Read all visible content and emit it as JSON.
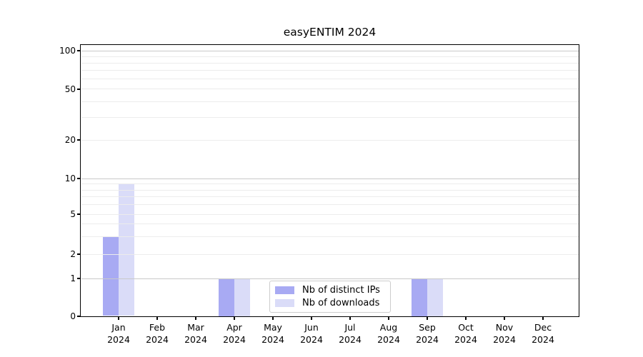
{
  "chart_data": {
    "type": "bar",
    "title": "easyENTIM 2024",
    "categories": [
      "Jan 2024",
      "Feb 2024",
      "Mar 2024",
      "Apr 2024",
      "May 2024",
      "Jun 2024",
      "Jul 2024",
      "Aug 2024",
      "Sep 2024",
      "Oct 2024",
      "Nov 2024",
      "Dec 2024"
    ],
    "series": [
      {
        "name": "Nb of distinct IPs",
        "color": "#a8aaf3",
        "values": [
          3,
          0,
          0,
          1,
          0,
          0,
          0,
          0,
          1,
          0,
          0,
          0
        ]
      },
      {
        "name": "Nb of downloads",
        "color": "#dadcf8",
        "values": [
          9,
          0,
          0,
          1,
          0,
          0,
          0,
          0,
          1,
          0,
          0,
          0
        ]
      }
    ],
    "xlabel": "",
    "ylabel": "",
    "yscale": "symlog",
    "ylim": [
      0,
      110
    ],
    "yticks": [
      0,
      1,
      2,
      5,
      10,
      20,
      50,
      100
    ],
    "major_gridlines": [
      1,
      10,
      100
    ],
    "minor_gridlines": [
      2,
      3,
      4,
      5,
      6,
      7,
      8,
      9,
      20,
      30,
      40,
      50,
      60,
      70,
      80,
      90
    ],
    "grid": "horizontal major and minor",
    "legend_position": "inside bottom-center"
  },
  "colors": {
    "axis": "#000000",
    "major_grid": "#c9c9c9",
    "minor_grid": "#ececec",
    "legend_border": "#cccccc",
    "background": "#ffffff"
  }
}
